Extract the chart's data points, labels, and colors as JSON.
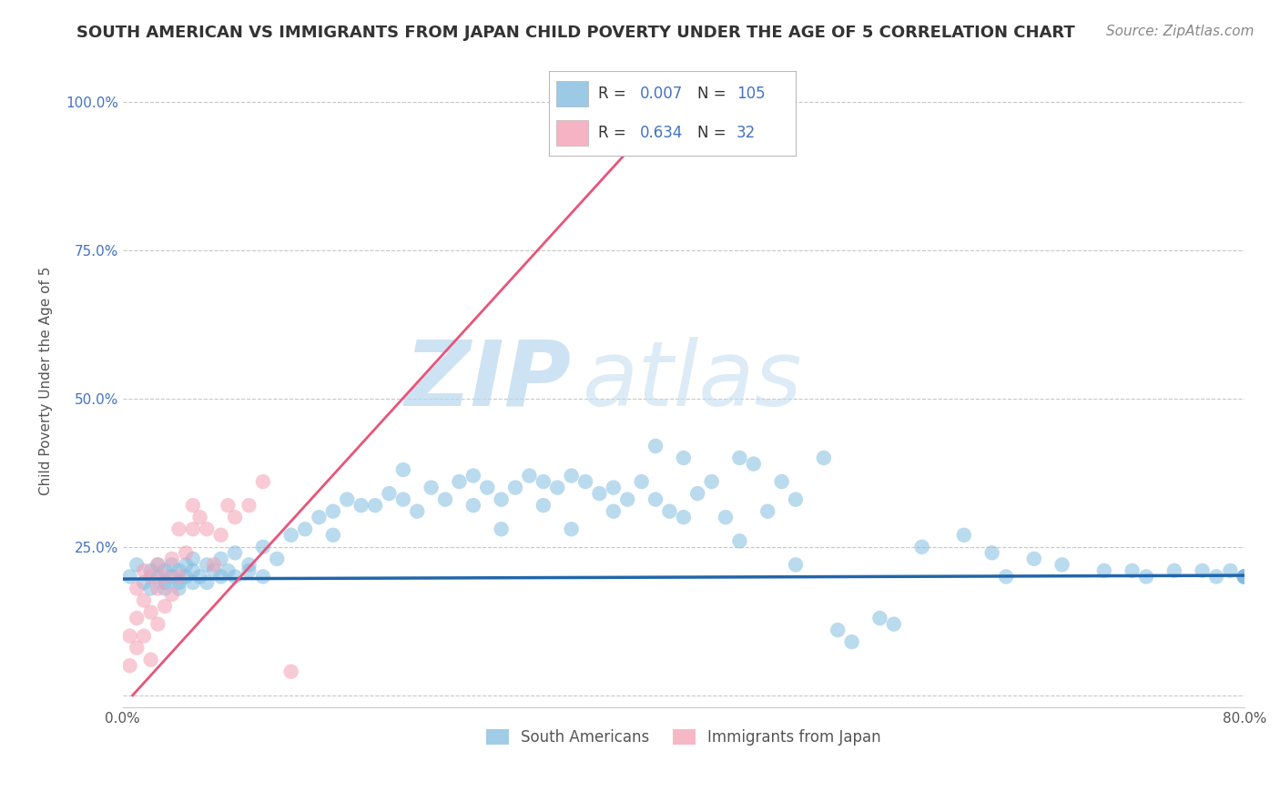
{
  "title": "SOUTH AMERICAN VS IMMIGRANTS FROM JAPAN CHILD POVERTY UNDER THE AGE OF 5 CORRELATION CHART",
  "source": "Source: ZipAtlas.com",
  "ylabel": "Child Poverty Under the Age of 5",
  "xlim": [
    0.0,
    0.8
  ],
  "ylim": [
    -0.02,
    1.08
  ],
  "yticks": [
    0.0,
    0.25,
    0.5,
    0.75,
    1.0
  ],
  "yticklabels": [
    "",
    "25.0%",
    "50.0%",
    "75.0%",
    "100.0%"
  ],
  "xticks": [
    0.0,
    0.2,
    0.4,
    0.6,
    0.8
  ],
  "xticklabels": [
    "0.0%",
    "",
    "",
    "",
    "80.0%"
  ],
  "blue_color": "#82bce0",
  "pink_color": "#f4a0b5",
  "blue_line_color": "#2166ac",
  "pink_line_color": "#e8547a",
  "R_blue": 0.007,
  "N_blue": 105,
  "R_pink": 0.634,
  "N_pink": 32,
  "watermark_zip": "ZIP",
  "watermark_atlas": "atlas",
  "legend_blue_label": "South Americans",
  "legend_pink_label": "Immigrants from Japan",
  "blue_scatter_x": [
    0.005,
    0.01,
    0.015,
    0.02,
    0.02,
    0.025,
    0.025,
    0.03,
    0.03,
    0.03,
    0.035,
    0.035,
    0.04,
    0.04,
    0.04,
    0.045,
    0.045,
    0.05,
    0.05,
    0.05,
    0.055,
    0.06,
    0.06,
    0.065,
    0.07,
    0.07,
    0.075,
    0.08,
    0.08,
    0.09,
    0.09,
    0.1,
    0.1,
    0.11,
    0.12,
    0.13,
    0.14,
    0.15,
    0.15,
    0.16,
    0.17,
    0.18,
    0.19,
    0.2,
    0.2,
    0.21,
    0.22,
    0.23,
    0.24,
    0.25,
    0.25,
    0.26,
    0.27,
    0.27,
    0.28,
    0.29,
    0.3,
    0.3,
    0.31,
    0.32,
    0.32,
    0.33,
    0.34,
    0.35,
    0.35,
    0.36,
    0.37,
    0.38,
    0.38,
    0.39,
    0.4,
    0.4,
    0.41,
    0.42,
    0.43,
    0.44,
    0.44,
    0.45,
    0.46,
    0.47,
    0.48,
    0.48,
    0.5,
    0.51,
    0.52,
    0.54,
    0.55,
    0.57,
    0.6,
    0.62,
    0.63,
    0.65,
    0.67,
    0.7,
    0.72,
    0.73,
    0.75,
    0.77,
    0.78,
    0.79,
    0.8,
    0.8,
    0.8,
    0.8,
    0.8
  ],
  "blue_scatter_y": [
    0.2,
    0.22,
    0.19,
    0.21,
    0.18,
    0.2,
    0.22,
    0.19,
    0.21,
    0.18,
    0.2,
    0.22,
    0.19,
    0.21,
    0.18,
    0.2,
    0.22,
    0.23,
    0.19,
    0.21,
    0.2,
    0.22,
    0.19,
    0.21,
    0.2,
    0.23,
    0.21,
    0.24,
    0.2,
    0.22,
    0.21,
    0.25,
    0.2,
    0.23,
    0.27,
    0.28,
    0.3,
    0.31,
    0.27,
    0.33,
    0.32,
    0.32,
    0.34,
    0.38,
    0.33,
    0.31,
    0.35,
    0.33,
    0.36,
    0.37,
    0.32,
    0.35,
    0.33,
    0.28,
    0.35,
    0.37,
    0.36,
    0.32,
    0.35,
    0.37,
    0.28,
    0.36,
    0.34,
    0.31,
    0.35,
    0.33,
    0.36,
    0.33,
    0.42,
    0.31,
    0.4,
    0.3,
    0.34,
    0.36,
    0.3,
    0.4,
    0.26,
    0.39,
    0.31,
    0.36,
    0.33,
    0.22,
    0.4,
    0.11,
    0.09,
    0.13,
    0.12,
    0.25,
    0.27,
    0.24,
    0.2,
    0.23,
    0.22,
    0.21,
    0.21,
    0.2,
    0.21,
    0.21,
    0.2,
    0.21,
    0.2,
    0.2,
    0.2,
    0.2,
    0.2
  ],
  "pink_scatter_x": [
    0.005,
    0.005,
    0.01,
    0.01,
    0.01,
    0.015,
    0.015,
    0.015,
    0.02,
    0.02,
    0.02,
    0.025,
    0.025,
    0.025,
    0.03,
    0.03,
    0.035,
    0.035,
    0.04,
    0.04,
    0.045,
    0.05,
    0.05,
    0.055,
    0.06,
    0.065,
    0.07,
    0.075,
    0.08,
    0.09,
    0.1,
    0.12
  ],
  "pink_scatter_y": [
    0.05,
    0.1,
    0.08,
    0.13,
    0.18,
    0.1,
    0.16,
    0.21,
    0.06,
    0.14,
    0.2,
    0.12,
    0.18,
    0.22,
    0.15,
    0.2,
    0.17,
    0.23,
    0.2,
    0.28,
    0.24,
    0.28,
    0.32,
    0.3,
    0.28,
    0.22,
    0.27,
    0.32,
    0.3,
    0.32,
    0.36,
    0.04
  ],
  "blue_line_x": [
    0.0,
    0.8
  ],
  "blue_line_y": [
    0.196,
    0.202
  ],
  "pink_line_x": [
    0.007,
    0.4
  ],
  "pink_line_y": [
    0.0,
    1.02
  ],
  "bg_color": "#ffffff",
  "grid_color": "#c8c8c8",
  "title_fontsize": 13,
  "axis_label_fontsize": 11,
  "tick_fontsize": 11,
  "source_fontsize": 11
}
